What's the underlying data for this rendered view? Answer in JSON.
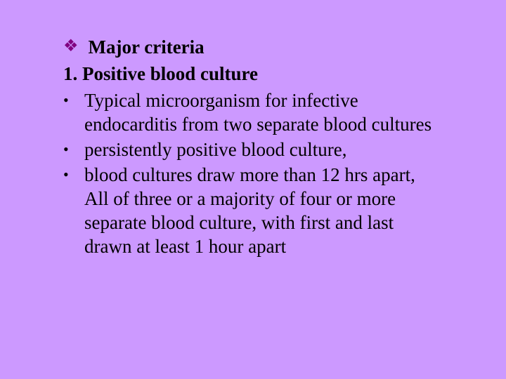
{
  "slide": {
    "background_color": "#cc99ff",
    "text_color": "#000000",
    "diamond_color": "#800080",
    "font_family": "Times New Roman",
    "heading_fontsize": 27,
    "body_fontsize": 27,
    "heading": "Major criteria",
    "numbered_item": "1. Positive blood culture",
    "bullets": [
      "Typical microorganism for infective endocarditis from two separate blood cultures",
      "persistently positive blood culture,",
      "blood cultures draw more than 12 hrs apart, All of three or a majority of four or more separate blood culture, with first and last drawn at least 1 hour apart"
    ]
  }
}
